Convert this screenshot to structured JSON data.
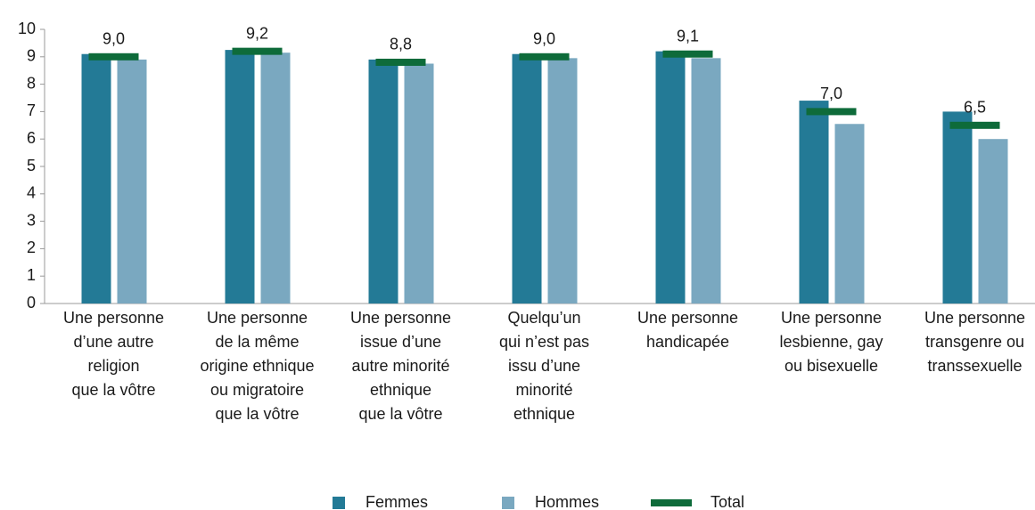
{
  "chart_data": {
    "type": "bar",
    "categories": [
      "Une personne\nd’une autre\nreligion\nque la vôtre",
      "Une personne\nde la même\norigine ethnique\nou migratoire\nque la vôtre",
      "Une personne\nissue d’une\nautre minorité\nethnique\nque la vôtre",
      "Quelqu’un\nqui n’est pas\nissu d’une\nminorité\nethnique",
      "Une personne\nhandicapée",
      "Une personne\nlesbienne, gay\nou bisexuelle",
      "Une personne\ntransgenre ou\ntranssexuelle"
    ],
    "series": [
      {
        "name": "Femmes",
        "color": "#237a96",
        "values": [
          9.1,
          9.25,
          8.9,
          9.1,
          9.2,
          7.4,
          7.0
        ]
      },
      {
        "name": "Hommes",
        "color": "#7aa8c0",
        "values": [
          8.9,
          9.15,
          8.75,
          8.95,
          8.95,
          6.55,
          6.0
        ]
      },
      {
        "name": "Total",
        "color": "#0e6b3a",
        "marker": "line",
        "values": [
          9.0,
          9.2,
          8.8,
          9.0,
          9.1,
          7.0,
          6.5
        ],
        "value_labels": [
          "9,0",
          "9,2",
          "8,8",
          "9,0",
          "9,1",
          "7,0",
          "6,5"
        ]
      }
    ],
    "ylim": [
      0,
      10
    ],
    "yticks": [
      0,
      1,
      2,
      3,
      4,
      5,
      6,
      7,
      8,
      9,
      10
    ],
    "grid": false,
    "legend": "bottom"
  }
}
